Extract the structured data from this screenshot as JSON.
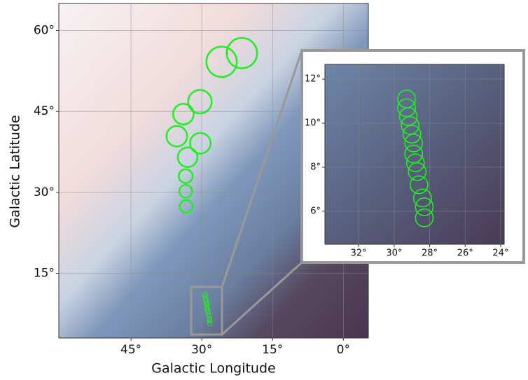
{
  "chart_data": [
    {
      "type": "scatter",
      "x_label": "Galactic Longitude",
      "y_label": "Galactic Latitude",
      "xlim": [
        60.3,
        -5.3
      ],
      "ylim": [
        3,
        65
      ],
      "xticks": [
        {
          "value": 45,
          "label": "45°"
        },
        {
          "value": 30,
          "label": "30°"
        },
        {
          "value": 15,
          "label": "15°"
        },
        {
          "value": 0,
          "label": "0°"
        }
      ],
      "yticks": [
        {
          "value": 15,
          "label": "15°"
        },
        {
          "value": 30,
          "label": "30°"
        },
        {
          "value": 45,
          "label": "45°"
        },
        {
          "value": 60,
          "label": "60°"
        }
      ],
      "grid": true,
      "series": [
        {
          "color": "#22ee22",
          "x": [
            25.8,
            21.5,
            30.4,
            33.9,
            35.3,
            30.3,
            33.0,
            33.4,
            33.4,
            33.3
          ],
          "values": [
            54.2,
            55.8,
            46.8,
            44.5,
            40.4,
            39.1,
            36.5,
            33.0,
            30.2,
            27.4
          ],
          "radius": [
            3.1,
            3.1,
            2.4,
            2.1,
            2.1,
            2.1,
            2.0,
            1.4,
            1.3,
            1.3
          ]
        }
      ]
    },
    {
      "type": "scatter",
      "xlim": [
        33.9,
        23.8
      ],
      "ylim": [
        4.5,
        12.67
      ],
      "xticks": [
        {
          "value": 32,
          "label": "32°"
        },
        {
          "value": 30,
          "label": "30°"
        },
        {
          "value": 28,
          "label": "28°"
        },
        {
          "value": 26,
          "label": "26°"
        },
        {
          "value": 24,
          "label": "24°"
        }
      ],
      "yticks": [
        {
          "value": 6,
          "label": "6°"
        },
        {
          "value": 8,
          "label": "8°"
        },
        {
          "value": 10,
          "label": "10°"
        },
        {
          "value": 12,
          "label": "12°"
        }
      ],
      "grid": true,
      "series": [
        {
          "color": "#22ee22",
          "x": [
            29.3,
            29.3,
            29.2,
            29.1,
            29.0,
            28.9,
            28.9,
            28.8,
            28.7,
            28.6,
            28.4,
            28.3,
            28.3
          ],
          "values": [
            11.1,
            10.7,
            10.3,
            9.9,
            9.5,
            9.1,
            8.6,
            8.2,
            7.8,
            7.2,
            6.6,
            6.2,
            5.7
          ],
          "radius": [
            0.45,
            0.45,
            0.45,
            0.45,
            0.45,
            0.45,
            0.45,
            0.45,
            0.45,
            0.45,
            0.45,
            0.45,
            0.45
          ]
        }
      ]
    }
  ]
}
